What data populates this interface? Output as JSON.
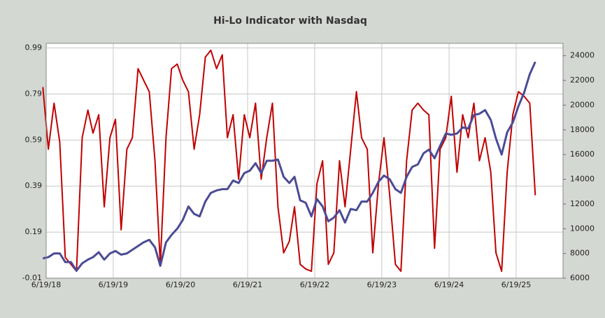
{
  "chart_data": {
    "type": "line",
    "title": "Hi-Lo Indicator with Nasdaq",
    "x": [
      "2018-06",
      "2018-07",
      "2018-08",
      "2018-09",
      "2018-10",
      "2018-11",
      "2018-12",
      "2019-01",
      "2019-02",
      "2019-03",
      "2019-04",
      "2019-05",
      "2019-06",
      "2019-07",
      "2019-08",
      "2019-09",
      "2019-10",
      "2019-11",
      "2019-12",
      "2020-01",
      "2020-02",
      "2020-03",
      "2020-04",
      "2020-05",
      "2020-06",
      "2020-07",
      "2020-08",
      "2020-09",
      "2020-10",
      "2020-11",
      "2020-12",
      "2021-01",
      "2021-02",
      "2021-03",
      "2021-04",
      "2021-05",
      "2021-06",
      "2021-07",
      "2021-08",
      "2021-09",
      "2021-10",
      "2021-11",
      "2021-12",
      "2022-01",
      "2022-02",
      "2022-03",
      "2022-04",
      "2022-05",
      "2022-06",
      "2022-07",
      "2022-08",
      "2022-09",
      "2022-10",
      "2022-11",
      "2022-12",
      "2023-01",
      "2023-02",
      "2023-03",
      "2023-04",
      "2023-05",
      "2023-06",
      "2023-07",
      "2023-08",
      "2023-09",
      "2023-10",
      "2023-11",
      "2023-12",
      "2024-01",
      "2024-02",
      "2024-03",
      "2024-04",
      "2024-05",
      "2024-06",
      "2024-07",
      "2024-08",
      "2024-09",
      "2024-10",
      "2024-11",
      "2024-12",
      "2025-01",
      "2025-02",
      "2025-03",
      "2025-04",
      "2025-05",
      "2025-06",
      "2025-07",
      "2025-08",
      "2025-09",
      "2025-10"
    ],
    "series": [
      {
        "color": "#c00000",
        "values": [
          0.82,
          0.55,
          0.75,
          0.58,
          0.08,
          0.05,
          0.02,
          0.6,
          0.72,
          0.62,
          0.7,
          0.3,
          0.6,
          0.68,
          0.2,
          0.55,
          0.6,
          0.9,
          0.85,
          0.8,
          0.5,
          0.05,
          0.6,
          0.9,
          0.92,
          0.85,
          0.8,
          0.55,
          0.7,
          0.95,
          0.98,
          0.9,
          0.96,
          0.6,
          0.7,
          0.42,
          0.7,
          0.6,
          0.75,
          0.42,
          0.6,
          0.75,
          0.3,
          0.1,
          0.15,
          0.3,
          0.05,
          0.03,
          0.02,
          0.4,
          0.5,
          0.05,
          0.1,
          0.5,
          0.3,
          0.55,
          0.8,
          0.6,
          0.55,
          0.1,
          0.4,
          0.6,
          0.35,
          0.05,
          0.02,
          0.5,
          0.72,
          0.75,
          0.72,
          0.7,
          0.12,
          0.55,
          0.6,
          0.78,
          0.45,
          0.7,
          0.6,
          0.75,
          0.5,
          0.6,
          0.45,
          0.1,
          0.02,
          0.45,
          0.7,
          0.8,
          0.78,
          0.75,
          0.35
        ]
      },
      {
        "color": "#4b4b96",
        "axis": "y2",
        "values": [
          7600,
          7700,
          8000,
          8000,
          7300,
          7300,
          6600,
          7200,
          7500,
          7700,
          8100,
          7500,
          8000,
          8200,
          7900,
          8000,
          8300,
          8600,
          8900,
          9100,
          8500,
          7000,
          8900,
          9500,
          10000,
          10700,
          11800,
          11200,
          11000,
          12200,
          12900,
          13100,
          13200,
          13200,
          13900,
          13700,
          14500,
          14700,
          15300,
          14500,
          15500,
          15500,
          15600,
          14200,
          13700,
          14200,
          12300,
          12100,
          11000,
          12400,
          11800,
          10600,
          10900,
          11500,
          10500,
          11600,
          11500,
          12200,
          12200,
          12900,
          13800,
          14300,
          14000,
          13200,
          12900,
          14200,
          15000,
          15200,
          16100,
          16400,
          15700,
          16700,
          17700,
          17600,
          17700,
          18200,
          18100,
          19200,
          19300,
          19600,
          18800,
          17300,
          16000,
          17800,
          18600,
          19900,
          21000,
          22500,
          23500
        ]
      }
    ],
    "xlim": [
      "2018-06-19",
      "2026-03-01"
    ],
    "xticks": [
      {
        "value": "2018-06-19",
        "label": "6/19/18"
      },
      {
        "value": "2019-06-19",
        "label": "6/19/19"
      },
      {
        "value": "2020-06-19",
        "label": "6/19/20"
      },
      {
        "value": "2021-06-19",
        "label": "6/19/21"
      },
      {
        "value": "2022-06-19",
        "label": "6/19/22"
      },
      {
        "value": "2023-06-19",
        "label": "6/19/23"
      },
      {
        "value": "2024-06-19",
        "label": "6/19/24"
      },
      {
        "value": "2025-06-19",
        "label": "6/19/25"
      }
    ],
    "ylim": [
      -0.01,
      1.01
    ],
    "yticks": [
      -0.01,
      0.19,
      0.39,
      0.59,
      0.79,
      0.99
    ],
    "y2lim": [
      6000,
      25000
    ],
    "y2ticks": [
      6000,
      8000,
      10000,
      12000,
      14000,
      16000,
      18000,
      20000,
      22000,
      24000
    ],
    "grid": true
  }
}
